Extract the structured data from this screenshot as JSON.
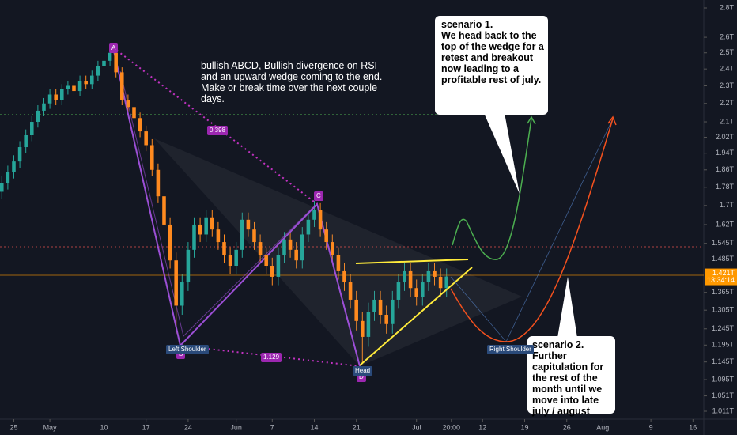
{
  "chart_data": {
    "type": "candlestick",
    "log_scale": true,
    "up_color": "#26a69a",
    "down_color": "#ff8a1f",
    "xlim": [
      -8.3,
      108.8
    ],
    "ylim": [
      1.011,
      2.8
    ],
    "xticks": [
      {
        "value": -6,
        "label": "25"
      },
      {
        "value": 0,
        "label": "May"
      },
      {
        "value": 9,
        "label": "10"
      },
      {
        "value": 16,
        "label": "17"
      },
      {
        "value": 23,
        "label": "24"
      },
      {
        "value": 31,
        "label": "Jun"
      },
      {
        "value": 37,
        "label": "7"
      },
      {
        "value": 44,
        "label": "14"
      },
      {
        "value": 51,
        "label": "21"
      },
      {
        "value": 61,
        "label": "Jul"
      },
      {
        "value": 66.8,
        "label": "20:00"
      },
      {
        "value": 72,
        "label": "12"
      },
      {
        "value": 79,
        "label": "19"
      },
      {
        "value": 86,
        "label": "26"
      },
      {
        "value": 92,
        "label": "Aug"
      },
      {
        "value": 100,
        "label": "9"
      },
      {
        "value": 107,
        "label": "16"
      }
    ],
    "yticks": [
      {
        "value": 2.8,
        "label": "2.8T"
      },
      {
        "value": 2.6,
        "label": "2.6T"
      },
      {
        "value": 2.5,
        "label": "2.5T"
      },
      {
        "value": 2.4,
        "label": "2.4T"
      },
      {
        "value": 2.3,
        "label": "2.3T"
      },
      {
        "value": 2.2,
        "label": "2.2T"
      },
      {
        "value": 2.1,
        "label": "2.1T"
      },
      {
        "value": 2.02,
        "label": "2.02T"
      },
      {
        "value": 1.94,
        "label": "1.94T"
      },
      {
        "value": 1.86,
        "label": "1.86T"
      },
      {
        "value": 1.78,
        "label": "1.78T"
      },
      {
        "value": 1.7,
        "label": "1.7T"
      },
      {
        "value": 1.62,
        "label": "1.62T"
      },
      {
        "value": 1.545,
        "label": "1.545T"
      },
      {
        "value": 1.485,
        "label": "1.485T"
      },
      {
        "value": 1.365,
        "label": "1.365T"
      },
      {
        "value": 1.305,
        "label": "1.305T"
      },
      {
        "value": 1.245,
        "label": "1.245T"
      },
      {
        "value": 1.195,
        "label": "1.195T"
      },
      {
        "value": 1.145,
        "label": "1.145T"
      },
      {
        "value": 1.095,
        "label": "1.095T"
      },
      {
        "value": 1.051,
        "label": "1.051T"
      },
      {
        "value": 1.011,
        "label": "1.011T"
      }
    ],
    "x": [
      -8,
      -7,
      -6,
      -5,
      -4,
      -3,
      -2,
      -1,
      0,
      1,
      2,
      3,
      4,
      5,
      6,
      7,
      8,
      9,
      10,
      11,
      12,
      13,
      14,
      15,
      16,
      17,
      18,
      19,
      20,
      21,
      22,
      23,
      24,
      25,
      26,
      27,
      28,
      29,
      30,
      31,
      32,
      33,
      34,
      35,
      36,
      37,
      38,
      39,
      40,
      41,
      42,
      43,
      44,
      45,
      46,
      47,
      48,
      49,
      50,
      51,
      52,
      53,
      54,
      55,
      56,
      57,
      58,
      59,
      60,
      61,
      62,
      63,
      64,
      65,
      66
    ],
    "open": [
      1.76,
      1.8,
      1.85,
      1.9,
      1.97,
      2.03,
      2.1,
      2.16,
      2.2,
      2.25,
      2.22,
      2.28,
      2.3,
      2.27,
      2.33,
      2.31,
      2.36,
      2.42,
      2.45,
      2.5,
      2.38,
      2.22,
      2.18,
      2.12,
      2.05,
      1.98,
      1.86,
      1.74,
      1.62,
      1.48,
      1.32,
      1.4,
      1.52,
      1.62,
      1.58,
      1.65,
      1.6,
      1.55,
      1.5,
      1.46,
      1.52,
      1.64,
      1.6,
      1.55,
      1.5,
      1.46,
      1.42,
      1.5,
      1.56,
      1.52,
      1.48,
      1.58,
      1.64,
      1.68,
      1.6,
      1.55,
      1.5,
      1.44,
      1.4,
      1.34,
      1.27,
      1.22,
      1.3,
      1.34,
      1.29,
      1.26,
      1.34,
      1.4,
      1.44,
      1.38,
      1.35,
      1.4,
      1.44,
      1.42,
      1.38
    ],
    "high": [
      1.83,
      1.88,
      1.93,
      2.0,
      2.06,
      2.13,
      2.19,
      2.23,
      2.28,
      2.28,
      2.31,
      2.33,
      2.33,
      2.36,
      2.36,
      2.39,
      2.45,
      2.48,
      2.53,
      2.53,
      2.41,
      2.25,
      2.21,
      2.15,
      2.08,
      2.01,
      1.89,
      1.77,
      1.65,
      1.51,
      1.43,
      1.55,
      1.65,
      1.65,
      1.68,
      1.68,
      1.63,
      1.58,
      1.53,
      1.55,
      1.67,
      1.67,
      1.63,
      1.58,
      1.53,
      1.49,
      1.53,
      1.59,
      1.59,
      1.55,
      1.61,
      1.67,
      1.72,
      1.71,
      1.63,
      1.58,
      1.53,
      1.47,
      1.43,
      1.37,
      1.3,
      1.33,
      1.37,
      1.37,
      1.32,
      1.37,
      1.43,
      1.47,
      1.47,
      1.41,
      1.43,
      1.47,
      1.47,
      1.45,
      1.45
    ],
    "low": [
      1.73,
      1.77,
      1.82,
      1.87,
      1.94,
      2.0,
      2.07,
      2.13,
      2.17,
      2.19,
      2.19,
      2.25,
      2.24,
      2.24,
      2.28,
      2.28,
      2.33,
      2.39,
      2.42,
      2.35,
      2.19,
      2.15,
      2.09,
      2.02,
      1.95,
      1.83,
      1.71,
      1.59,
      1.45,
      1.23,
      1.29,
      1.37,
      1.49,
      1.55,
      1.55,
      1.57,
      1.52,
      1.47,
      1.43,
      1.43,
      1.49,
      1.57,
      1.52,
      1.47,
      1.43,
      1.39,
      1.39,
      1.47,
      1.49,
      1.45,
      1.45,
      1.55,
      1.61,
      1.57,
      1.52,
      1.47,
      1.41,
      1.37,
      1.31,
      1.24,
      1.14,
      1.19,
      1.27,
      1.26,
      1.23,
      1.23,
      1.31,
      1.37,
      1.35,
      1.32,
      1.32,
      1.37,
      1.39,
      1.35,
      1.35
    ],
    "close": [
      1.8,
      1.85,
      1.9,
      1.97,
      2.03,
      2.1,
      2.16,
      2.2,
      2.25,
      2.22,
      2.28,
      2.3,
      2.27,
      2.33,
      2.31,
      2.36,
      2.42,
      2.45,
      2.5,
      2.38,
      2.22,
      2.18,
      2.12,
      2.05,
      1.98,
      1.86,
      1.74,
      1.62,
      1.48,
      1.32,
      1.4,
      1.52,
      1.62,
      1.58,
      1.65,
      1.6,
      1.55,
      1.5,
      1.46,
      1.52,
      1.64,
      1.6,
      1.55,
      1.5,
      1.46,
      1.42,
      1.5,
      1.56,
      1.52,
      1.48,
      1.58,
      1.64,
      1.68,
      1.6,
      1.55,
      1.5,
      1.44,
      1.4,
      1.34,
      1.27,
      1.22,
      1.3,
      1.34,
      1.29,
      1.26,
      1.34,
      1.4,
      1.44,
      1.38,
      1.35,
      1.4,
      1.44,
      1.42,
      1.38,
      1.421
    ],
    "last_price": {
      "value": 1.421,
      "label": "1.421T"
    },
    "countdown": "13:34:14",
    "annotations": {
      "note": "bullish ABCD, Bullish divergence on RSI and an upward wedge coming to the end. Make or break time over the next couple days.",
      "points": [
        "A",
        "B",
        "C",
        "D"
      ],
      "ratios": [
        "0.398",
        "1.129"
      ],
      "shoulders": [
        "Left Shoulder",
        "Head",
        "Right Shoulder"
      ],
      "scenario_1": {
        "title": "scenario 1.",
        "text": "We head back to the top of the wedge for a retest and breakout now leading to a profitable rest of july."
      },
      "scenario_2": {
        "title": "scenario 2.",
        "text": "Further capitulation for the rest of the month until we move into late july / august"
      }
    }
  }
}
